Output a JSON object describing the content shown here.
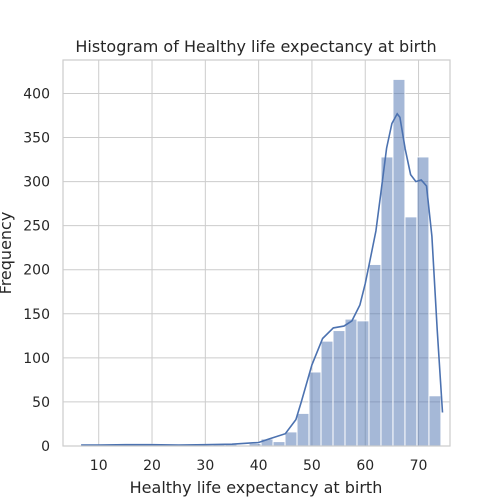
{
  "chart_data": {
    "type": "histogram",
    "title": "Histogram of Healthy life expectancy at birth",
    "xlabel": "Healthy life expectancy at birth",
    "ylabel": "Frequency",
    "xlim": [
      3.3,
      75.9
    ],
    "ylim": [
      0,
      438
    ],
    "xticks": [
      10,
      20,
      30,
      40,
      50,
      60,
      70
    ],
    "yticks": [
      0,
      50,
      100,
      150,
      200,
      250,
      300,
      350,
      400
    ],
    "grid": true,
    "colors": {
      "bar": "#4c72b0",
      "kde": "#4c72b0",
      "grid": "#cccccc"
    },
    "bins": [
      {
        "x0": 6.7,
        "x1": 8.95,
        "count": 2
      },
      {
        "x0": 8.95,
        "x1": 11.2,
        "count": 1
      },
      {
        "x0": 11.2,
        "x1": 13.45,
        "count": 1
      },
      {
        "x0": 13.45,
        "x1": 15.7,
        "count": 1
      },
      {
        "x0": 15.7,
        "x1": 17.95,
        "count": 2
      },
      {
        "x0": 17.95,
        "x1": 20.2,
        "count": 2
      },
      {
        "x0": 20.2,
        "x1": 22.45,
        "count": 1
      },
      {
        "x0": 22.45,
        "x1": 24.7,
        "count": 1
      },
      {
        "x0": 24.7,
        "x1": 26.95,
        "count": 1
      },
      {
        "x0": 26.95,
        "x1": 29.2,
        "count": 2
      },
      {
        "x0": 29.2,
        "x1": 31.45,
        "count": 1
      },
      {
        "x0": 31.45,
        "x1": 33.7,
        "count": 2
      },
      {
        "x0": 33.7,
        "x1": 35.95,
        "count": 2
      },
      {
        "x0": 35.95,
        "x1": 38.2,
        "count": 1
      },
      {
        "x0": 38.2,
        "x1": 40.45,
        "count": 3
      },
      {
        "x0": 40.45,
        "x1": 42.7,
        "count": 8
      },
      {
        "x0": 42.7,
        "x1": 44.95,
        "count": 5
      },
      {
        "x0": 44.95,
        "x1": 47.2,
        "count": 16
      },
      {
        "x0": 47.2,
        "x1": 49.45,
        "count": 37
      },
      {
        "x0": 49.45,
        "x1": 51.7,
        "count": 84
      },
      {
        "x0": 51.7,
        "x1": 53.95,
        "count": 119
      },
      {
        "x0": 53.95,
        "x1": 56.2,
        "count": 131
      },
      {
        "x0": 56.2,
        "x1": 58.45,
        "count": 144
      },
      {
        "x0": 58.45,
        "x1": 60.7,
        "count": 142
      },
      {
        "x0": 60.7,
        "x1": 62.95,
        "count": 206
      },
      {
        "x0": 62.95,
        "x1": 65.2,
        "count": 328
      },
      {
        "x0": 65.2,
        "x1": 67.45,
        "count": 416
      },
      {
        "x0": 67.45,
        "x1": 69.7,
        "count": 260
      },
      {
        "x0": 69.7,
        "x1": 71.95,
        "count": 328
      },
      {
        "x0": 71.95,
        "x1": 74.2,
        "count": 57
      }
    ],
    "kde": {
      "x": [
        6.7,
        10,
        15,
        20,
        25,
        30,
        35,
        40,
        42,
        45,
        47,
        48,
        50,
        52,
        54,
        56,
        57.5,
        59,
        60,
        61,
        62,
        63,
        64,
        65,
        66,
        66.5,
        67.5,
        68.5,
        69.5,
        70.5,
        71.5,
        72.5,
        73.5,
        74.5
      ],
      "y": [
        1,
        1,
        1.5,
        1.5,
        1,
        1.5,
        2,
        4,
        8,
        14,
        30,
        50,
        92,
        122,
        134,
        136,
        142,
        160,
        184,
        214,
        244,
        290,
        338,
        366,
        377,
        373,
        337,
        308,
        300,
        302,
        295,
        238,
        132,
        38
      ]
    }
  }
}
